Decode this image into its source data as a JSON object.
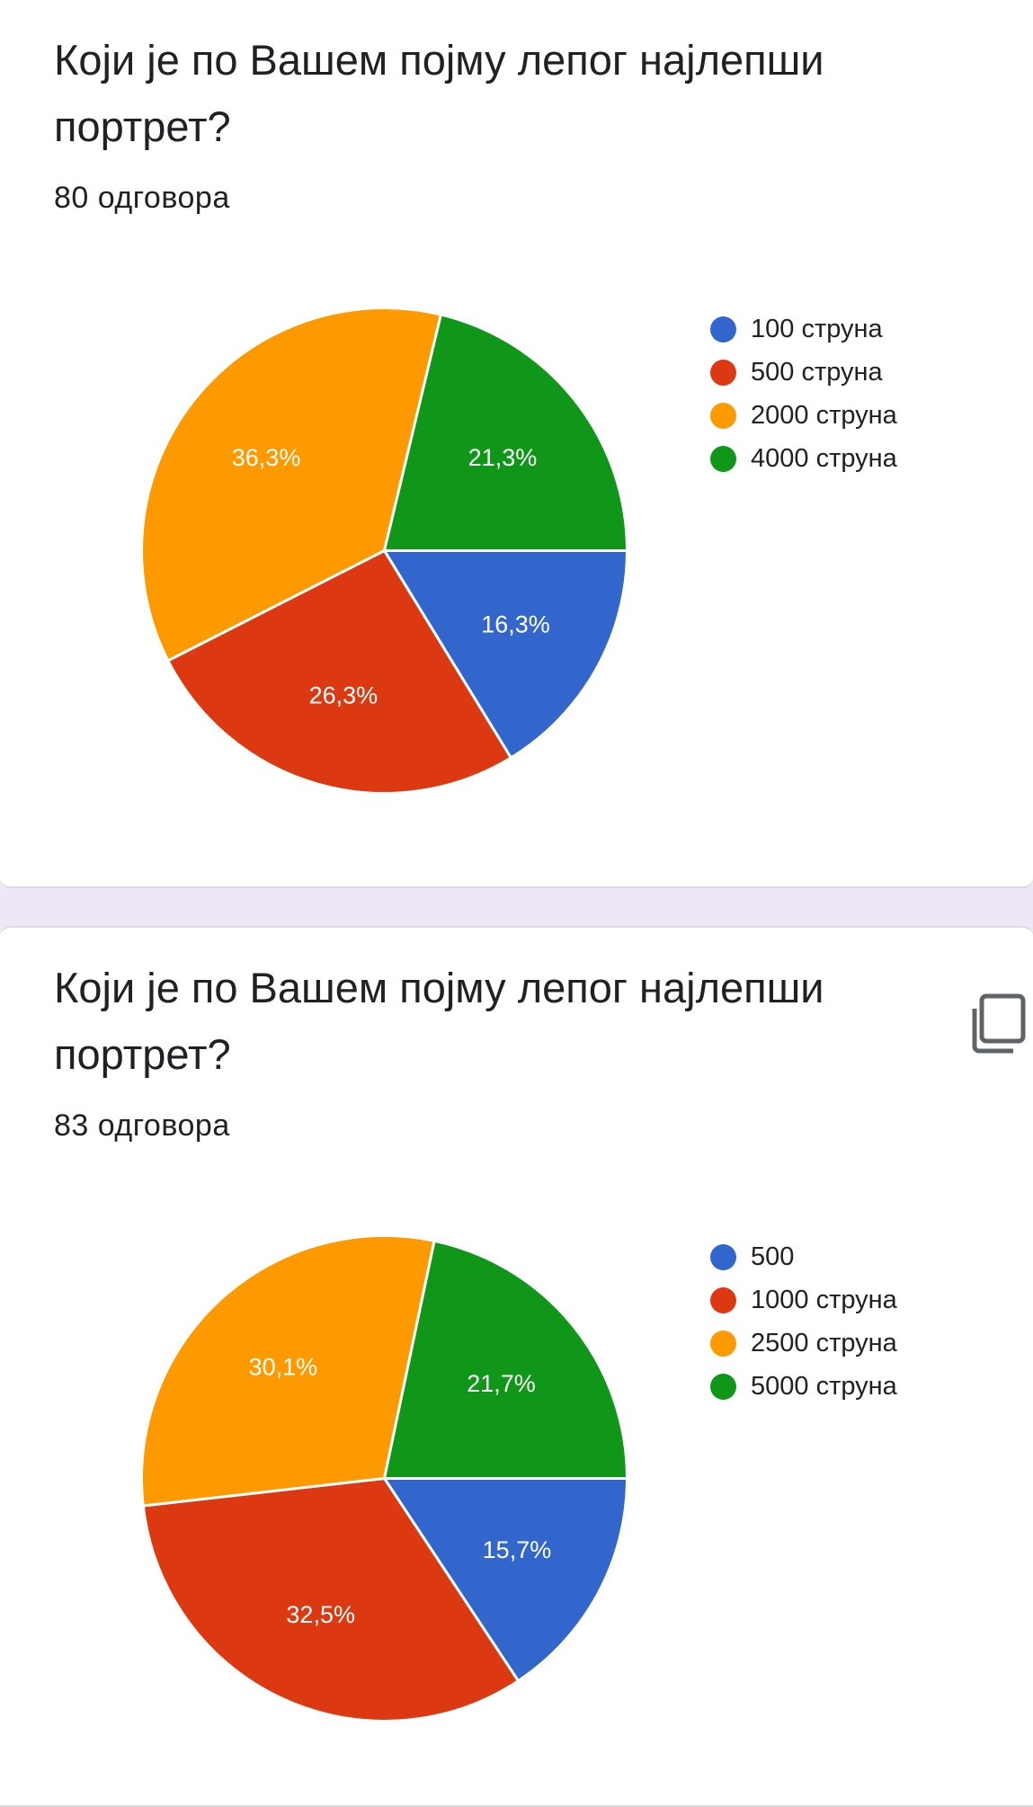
{
  "cards": [
    {
      "title": "Који је по Вашем појму лепог најлепши портрет?",
      "responses": "80 одговора",
      "show_copy": false
    },
    {
      "title": "Који је по Вашем појму лепог најлепши портрет?",
      "responses": "83 одговора",
      "show_copy": true
    }
  ],
  "icons": {
    "copy": "copy-icon"
  },
  "chart_data": [
    {
      "type": "pie",
      "title": "Који је по Вашем појму лепог најлепши портрет?",
      "categories": [
        "100 струна",
        "500 струна",
        "2000 струна",
        "4000 струна"
      ],
      "values": [
        16.3,
        26.3,
        36.3,
        21.3
      ],
      "labels": [
        "16,3%",
        "26,3%",
        "36,3%",
        "21,3%"
      ],
      "colors": [
        "#3366cc",
        "#dc3912",
        "#ff9900",
        "#109618"
      ],
      "legend_position": "right"
    },
    {
      "type": "pie",
      "title": "Који је по Вашем појму лепог најлепши портрет?",
      "categories": [
        "500",
        "1000 струна",
        "2500 струна",
        "5000 струна"
      ],
      "values": [
        15.7,
        32.5,
        30.1,
        21.7
      ],
      "labels": [
        "15,7%",
        "32,5%",
        "30,1%",
        "21,7%"
      ],
      "colors": [
        "#3366cc",
        "#dc3912",
        "#ff9900",
        "#109618"
      ],
      "legend_position": "right"
    }
  ]
}
